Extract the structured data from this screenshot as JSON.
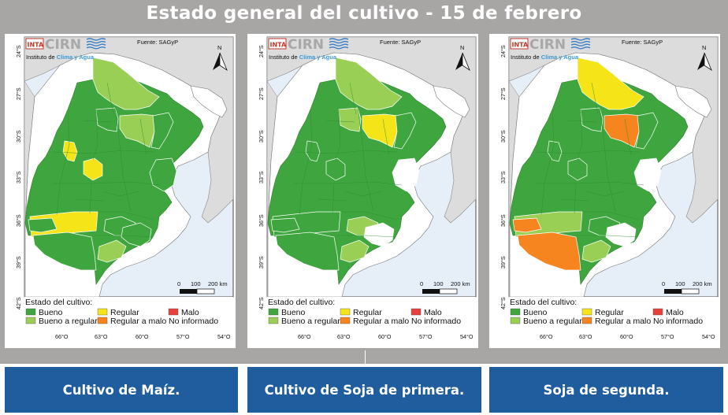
{
  "title": "Estado general del cultivo - 15 de febrero",
  "colors": {
    "background": "#a8a6a5",
    "caption_bg": "#1f5d9e",
    "bueno": "#3fa63f",
    "bueno_a_regular": "#99cf55",
    "regular": "#f4e418",
    "regular_a_malo": "#f6841f",
    "malo": "#e8403c",
    "no_informado": "#ffffff",
    "neighbor_land": "#dcdcdc",
    "sea": "#e6eef8"
  },
  "panel_common": {
    "logo_inta": "INTA",
    "logo_cirn": "CIRN",
    "institute_prefix": "Instituto de",
    "institute_highlight": "Clima y Agua",
    "source": "Fuente: SAGyP",
    "north": "N",
    "lat_labels": [
      "24°S",
      "27°S",
      "30°S",
      "33°S",
      "36°S",
      "39°S",
      "42°S"
    ],
    "lon_labels": [
      "66°O",
      "63°O",
      "60°O",
      "57°O",
      "54°O"
    ],
    "scale_labels": [
      "0",
      "100",
      "200 km"
    ],
    "legend_title": "Estado del cultivo:",
    "legend_items": [
      {
        "label": "Bueno",
        "color": "#3fa63f"
      },
      {
        "label": "Regular",
        "color": "#f4e418"
      },
      {
        "label": "Malo",
        "color": "#e8403c"
      },
      {
        "label": "Bueno a regular",
        "color": "#99cf55"
      },
      {
        "label": "Regular a malo",
        "color": "#f6841f"
      },
      {
        "label": "No informado",
        "color": "#ffffff"
      }
    ]
  },
  "maps": [
    {
      "caption": "Cultivo de Maíz.",
      "regions": {
        "chaco_north": "#99cf55",
        "chaco_center": "#99cf55",
        "santiago_east": "#3fa63f",
        "santafe_north": "#3fa63f",
        "cordoba_north_a": "#f4e418",
        "cordoba_north_b": "#f4e418",
        "entre_rios": "#3fa63f",
        "pampa_south": "#f4e418",
        "ba_central": "#3fa63f",
        "ba_southeast": "#3fa63f",
        "ba_southwest": "#3fa63f",
        "ba_small": "#99cf55",
        "la_pampa_west": "#3fa63f"
      }
    },
    {
      "caption": "Cultivo de Soja de primera.",
      "regions": {
        "chaco_north": "#99cf55",
        "chaco_center": "#f4e418",
        "santiago_east": "#99cf55",
        "santafe_north": "#3fa63f",
        "cordoba_north_a": "#3fa63f",
        "cordoba_north_b": "#3fa63f",
        "entre_rios": "#ffffff",
        "pampa_south": "#3fa63f",
        "ba_central": "#99cf55",
        "ba_southeast": "#ffffff",
        "ba_southwest": "#3fa63f",
        "ba_small": "#99cf55",
        "la_pampa_west": "#3fa63f"
      }
    },
    {
      "caption": "Soja de segunda.",
      "regions": {
        "chaco_north": "#f4e418",
        "chaco_center": "#f6841f",
        "santiago_east": "#3fa63f",
        "santafe_north": "#3fa63f",
        "cordoba_north_a": "#3fa63f",
        "cordoba_north_b": "#3fa63f",
        "entre_rios": "#ffffff",
        "pampa_south": "#99cf55",
        "ba_central": "#3fa63f",
        "ba_southeast": "#ffffff",
        "ba_southwest": "#f6841f",
        "ba_small": "#99cf55",
        "la_pampa_west": "#f6841f"
      }
    }
  ]
}
